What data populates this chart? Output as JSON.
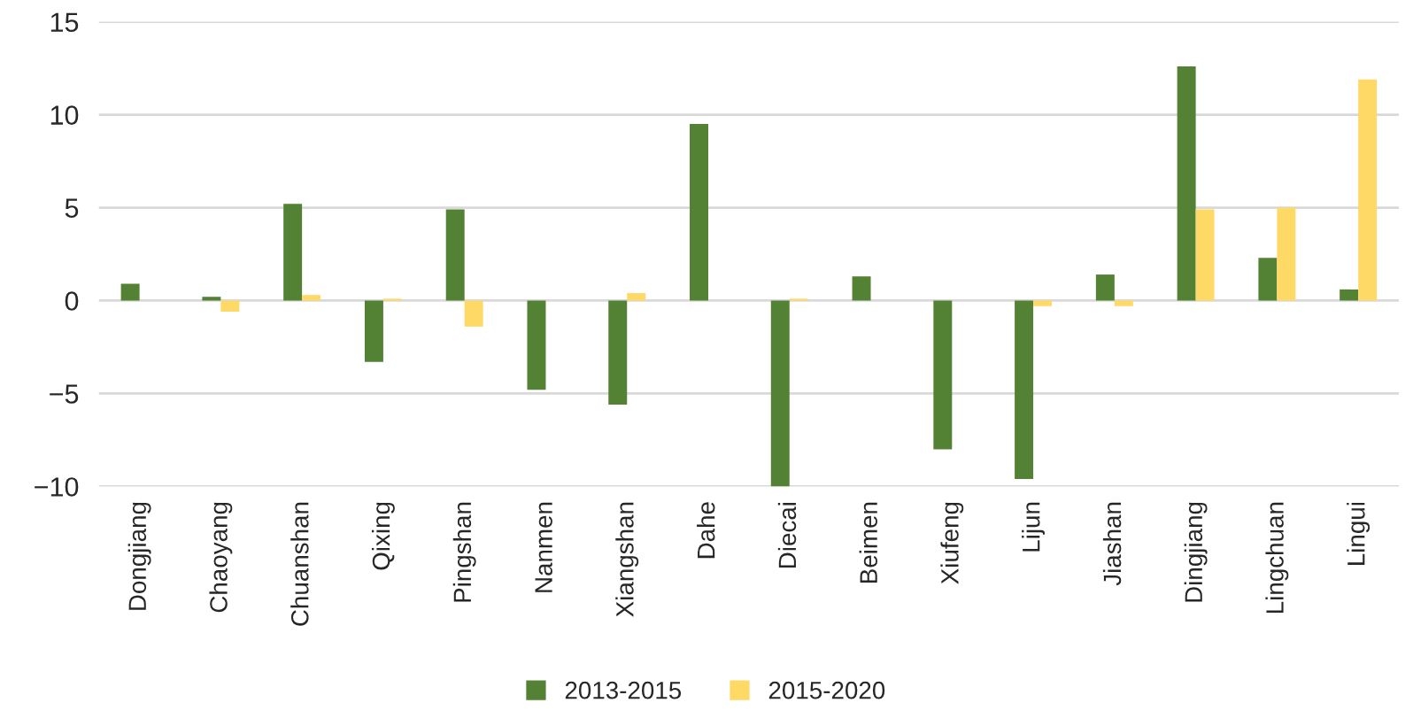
{
  "chart_data": {
    "type": "bar",
    "categories": [
      "Dongjiang",
      "Chaoyang",
      "Chuanshan",
      "Qixing",
      "Pingshan",
      "Nanmen",
      "Xiangshan",
      "Dahe",
      "Diecai",
      "Beimen",
      "Xiufeng",
      "Lijun",
      "Jiashan",
      "Dingjiang",
      "Lingchuan",
      "Lingui"
    ],
    "series": [
      {
        "name": "2013-2015",
        "color": "#548235",
        "values": [
          0.9,
          0.2,
          5.2,
          -3.3,
          4.9,
          -4.8,
          -5.6,
          9.5,
          -10.0,
          1.3,
          -8.0,
          -9.6,
          1.4,
          12.6,
          2.3,
          0.6
        ]
      },
      {
        "name": "2015-2020",
        "color": "#ffd966",
        "values": [
          null,
          -0.6,
          0.3,
          0.1,
          -1.4,
          null,
          0.4,
          null,
          0.1,
          null,
          null,
          -0.3,
          -0.3,
          4.9,
          5.0,
          11.9
        ]
      }
    ],
    "ylim": [
      -10,
      15
    ],
    "yticks": [
      {
        "value": -10,
        "label": "−10"
      },
      {
        "value": -5,
        "label": "−5"
      },
      0,
      5,
      10,
      15
    ],
    "grid": "y",
    "legend": "bottom"
  }
}
